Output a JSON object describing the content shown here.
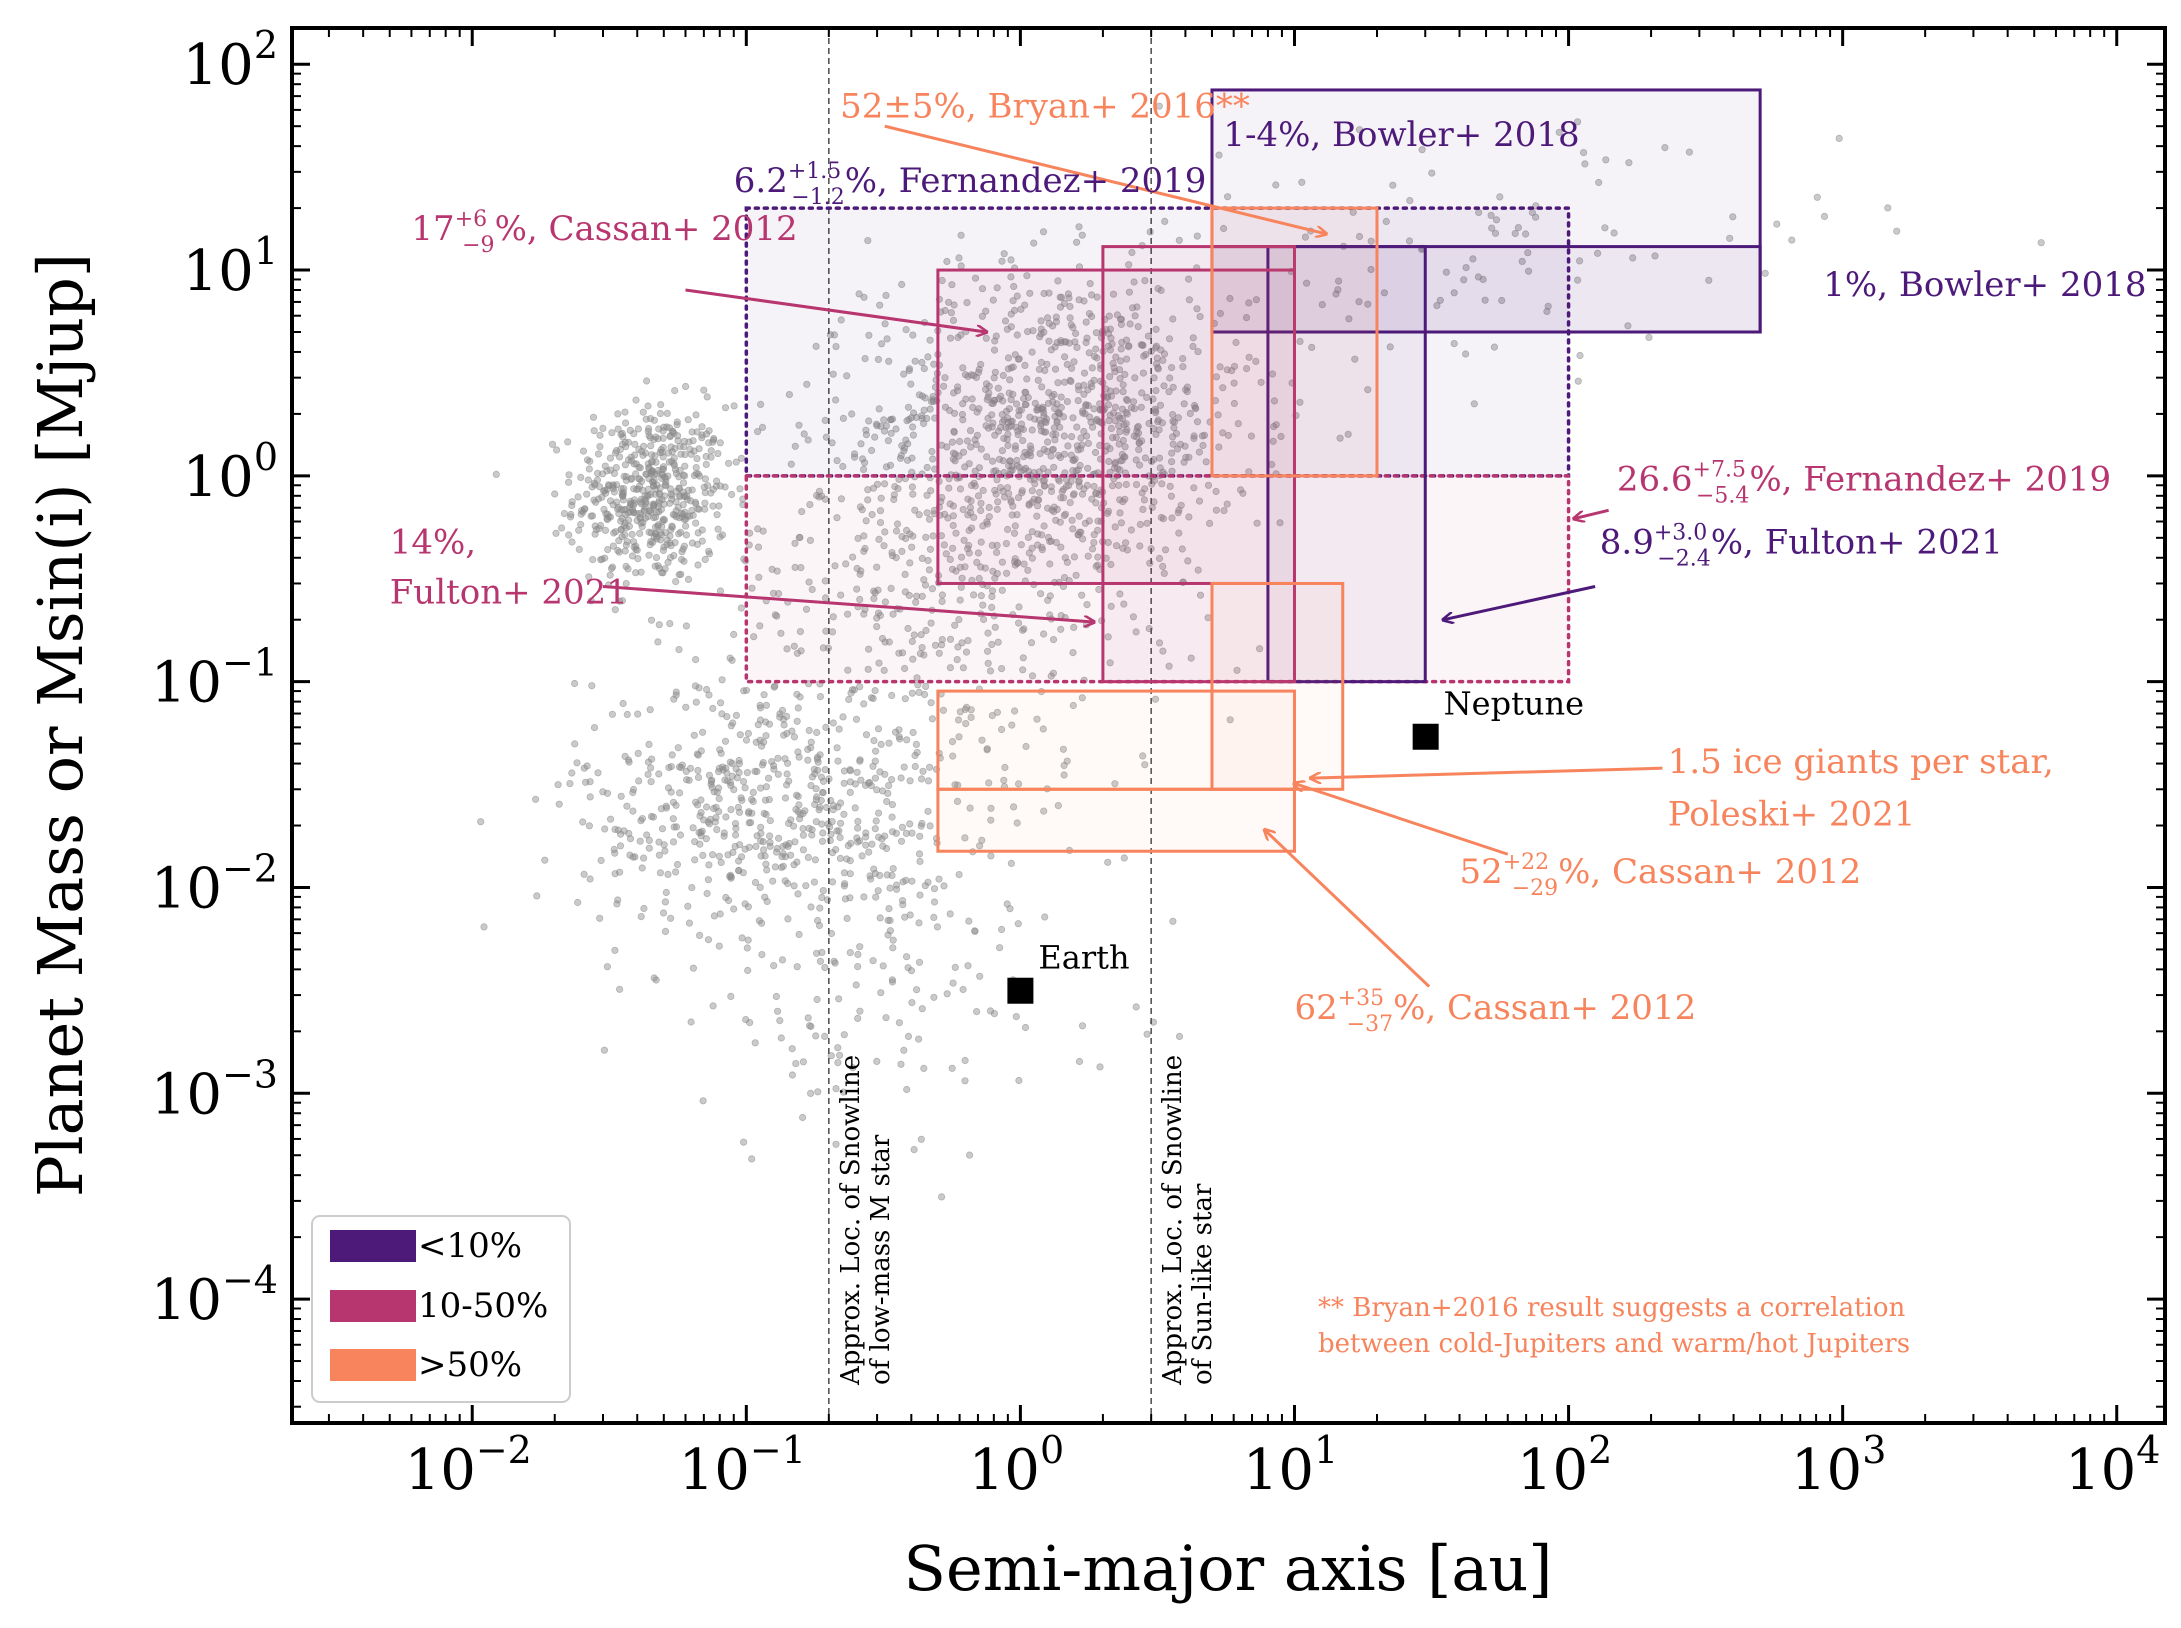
{
  "chart_data": {
    "type": "scatter",
    "xlabel": "Semi-major axis [au]",
    "ylabel": "Planet Mass or Msin(i) [Mjup]",
    "xscale": "log",
    "yscale": "log",
    "xlim": [
      0.0022,
      15000
    ],
    "ylim": [
      2.5e-05,
      150
    ],
    "x_ticks": [
      {
        "value": 0.01,
        "base": "10",
        "exp": "−2"
      },
      {
        "value": 0.1,
        "base": "10",
        "exp": "−1"
      },
      {
        "value": 1,
        "base": "10",
        "exp": "0"
      },
      {
        "value": 10,
        "base": "10",
        "exp": "1"
      },
      {
        "value": 100,
        "base": "10",
        "exp": "2"
      },
      {
        "value": 1000,
        "base": "10",
        "exp": "3"
      },
      {
        "value": 10000,
        "base": "10",
        "exp": "4"
      }
    ],
    "y_ticks": [
      {
        "value": 0.0001,
        "base": "10",
        "exp": "−4"
      },
      {
        "value": 0.001,
        "base": "10",
        "exp": "−3"
      },
      {
        "value": 0.01,
        "base": "10",
        "exp": "−2"
      },
      {
        "value": 0.1,
        "base": "10",
        "exp": "−1"
      },
      {
        "value": 1,
        "base": "10",
        "exp": "0"
      },
      {
        "value": 10,
        "base": "10",
        "exp": "1"
      },
      {
        "value": 100,
        "base": "10",
        "exp": "2"
      }
    ],
    "grid": false,
    "colors": {
      "low": "#4d1a7a",
      "mid": "#b8366f",
      "high": "#f7845c",
      "points": "#8a8a8a"
    },
    "scatter_clusters": [
      {
        "cx": 0.045,
        "cy": 0.8,
        "sx": 0.14,
        "sy": 0.22,
        "n": 520
      },
      {
        "cx": 1.4,
        "cy": 1.8,
        "sx": 0.35,
        "sy": 0.38,
        "n": 950
      },
      {
        "cx": 0.12,
        "cy": 0.025,
        "sx": 0.35,
        "sy": 0.32,
        "n": 560
      },
      {
        "cx": 0.5,
        "cy": 0.3,
        "sx": 0.42,
        "sy": 0.5,
        "n": 420
      },
      {
        "cx": 40,
        "cy": 12,
        "sx": 0.7,
        "sy": 0.3,
        "n": 110
      },
      {
        "cx": 0.3,
        "cy": 0.004,
        "sx": 0.45,
        "sy": 0.45,
        "n": 170
      }
    ],
    "regions": [
      {
        "x": [
          0.1,
          100
        ],
        "y": [
          1,
          20
        ],
        "style": "dotted",
        "color": "low",
        "fill": true
      },
      {
        "x": [
          0.1,
          100
        ],
        "y": [
          0.1,
          1
        ],
        "style": "dotted",
        "color": "mid",
        "fill": true
      },
      {
        "x": [
          5,
          500
        ],
        "y": [
          5,
          75
        ],
        "style": "solid",
        "color": "low",
        "fill": true
      },
      {
        "x": [
          5,
          500
        ],
        "y": [
          5,
          13
        ],
        "style": "solid",
        "color": "low",
        "fill": true
      },
      {
        "x": [
          8,
          30
        ],
        "y": [
          0.1,
          13
        ],
        "style": "solid",
        "color": "low",
        "fill": true
      },
      {
        "x": [
          0.5,
          10
        ],
        "y": [
          0.3,
          10
        ],
        "style": "solid",
        "color": "mid",
        "fill": true
      },
      {
        "x": [
          2,
          10
        ],
        "y": [
          0.1,
          13
        ],
        "style": "solid",
        "color": "mid",
        "fill": true
      },
      {
        "x": [
          5,
          20
        ],
        "y": [
          1,
          20
        ],
        "style": "solid",
        "color": "high",
        "fill": true
      },
      {
        "x": [
          5,
          15
        ],
        "y": [
          0.03,
          0.3
        ],
        "style": "solid",
        "color": "high",
        "fill": true
      },
      {
        "x": [
          0.5,
          10
        ],
        "y": [
          0.03,
          0.09
        ],
        "style": "solid",
        "color": "high",
        "fill": true
      },
      {
        "x": [
          0.5,
          10
        ],
        "y": [
          0.015,
          0.03
        ],
        "style": "solid",
        "color": "high",
        "fill": true
      }
    ],
    "reference_planets": [
      {
        "name": "Earth",
        "x": 1,
        "y": 0.00315
      },
      {
        "name": "Neptune",
        "x": 30.1,
        "y": 0.054
      }
    ],
    "snowlines": [
      {
        "x": 0.2,
        "line1": "Approx. Loc. of Snowline",
        "line2": "of low-mass M star"
      },
      {
        "x": 3,
        "line1": "Approx. Loc. of Snowline",
        "line2": "of Sun-like star"
      }
    ],
    "annotations": [
      {
        "color": "high",
        "text": "52±5%, Bryan+ 2016**",
        "tx": 0.22,
        "ty": 55,
        "arrow_from": [
          0.32,
          50
        ],
        "arrow_to": [
          13,
          15
        ]
      },
      {
        "color": "low",
        "text": "1-4%, Bowler+ 2018",
        "tx": 5.5,
        "ty": 40
      },
      {
        "color": "low",
        "main": "6.2",
        "sup": "+1.5",
        "sub": "−1.2",
        "rest": "%, Fernandez+ 2019",
        "tx": 0.09,
        "ty": 24
      },
      {
        "color": "mid",
        "main": "17",
        "sup": "+6",
        "sub": "−9",
        "rest": "%, Cassan+ 2012",
        "tx": 0.006,
        "ty": 14,
        "arrow_from": [
          0.06,
          8
        ],
        "arrow_to": [
          0.75,
          5
        ]
      },
      {
        "color": "low",
        "text": "1%, Bowler+ 2018",
        "tx": 850,
        "ty": 7.5
      },
      {
        "color": "mid",
        "main": "26.6",
        "sup": "+7.5",
        "sub": "−5.4",
        "rest": "%, Fernandez+ 2019",
        "tx": 150,
        "ty": 0.85,
        "arrow_from": [
          140,
          0.68
        ],
        "arrow_to": [
          105,
          0.62
        ]
      },
      {
        "color": "low",
        "main": "8.9",
        "sup": "+3.0",
        "sub": "−2.4",
        "rest": "%, Fulton+ 2021",
        "tx": 130,
        "ty": 0.42,
        "arrow_from": [
          125,
          0.29
        ],
        "arrow_to": [
          35,
          0.2
        ]
      },
      {
        "color": "mid",
        "text": "14%,",
        "text2": "Fulton+ 2021",
        "tx": 0.005,
        "ty": 0.42,
        "ty2": 0.24,
        "arrow_from": [
          0.03,
          0.29
        ],
        "arrow_to": [
          1.85,
          0.195
        ]
      },
      {
        "color": "high",
        "text": "1.5 ice giants per star,",
        "text2": "Poleski+ 2021",
        "tx": 230,
        "ty": 0.036,
        "ty2": 0.02,
        "arrow_from": [
          220,
          0.038
        ],
        "arrow_to": [
          11.5,
          0.034
        ]
      },
      {
        "color": "high",
        "main": "52",
        "sup": "+22",
        "sub": "−29",
        "rest": "%, Cassan+ 2012",
        "tx": 40,
        "ty": 0.0105,
        "arrow_from": [
          60,
          0.0145
        ],
        "arrow_to": [
          10,
          0.032
        ]
      },
      {
        "color": "high",
        "main": "62",
        "sup": "+35",
        "sub": "−37",
        "rest": "%, Cassan+ 2012",
        "tx": 10,
        "ty": 0.0023,
        "arrow_from": [
          31,
          0.0033
        ],
        "arrow_to": [
          7.8,
          0.019
        ]
      }
    ],
    "footnote": {
      "color": "high",
      "line1": "** Bryan+2016 result suggests a correlation",
      "line2": "between cold-Jupiters and warm/hot Jupiters"
    },
    "legend": {
      "position": "bottom-left",
      "entries": [
        {
          "label": "<10%",
          "color": "low"
        },
        {
          "label": "10-50%",
          "color": "mid"
        },
        {
          "label": ">50%",
          "color": "high"
        }
      ]
    }
  }
}
